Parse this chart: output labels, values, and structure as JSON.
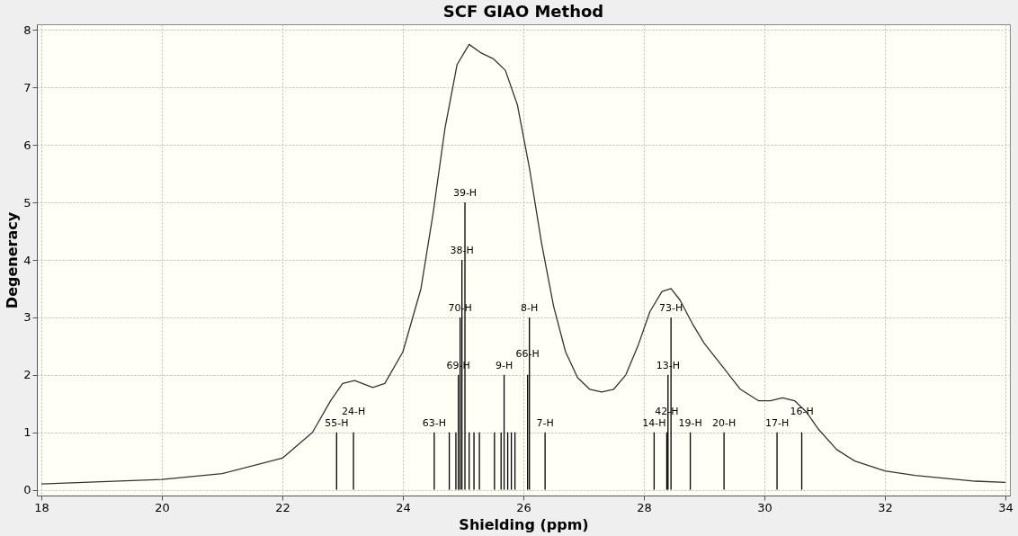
{
  "chart_data": {
    "type": "line",
    "title": "SCF GIAO Method",
    "xlabel": "Shielding (ppm)",
    "ylabel": "Degeneracy",
    "xlim": [
      18,
      34
    ],
    "xticks": [
      18,
      20,
      22,
      24,
      26,
      28,
      30,
      32,
      34
    ],
    "ylim": [
      -0.1,
      8.1
    ],
    "yticks": [
      0,
      1,
      2,
      3,
      4,
      5,
      6,
      7,
      8
    ],
    "grid": true,
    "series": [
      {
        "color": "#333333",
        "x": [
          18,
          20,
          21,
          22,
          22.5,
          22.8,
          23.0,
          23.2,
          23.5,
          23.7,
          24.0,
          24.3,
          24.5,
          24.7,
          24.9,
          25.1,
          25.3,
          25.5,
          25.7,
          25.9,
          26.1,
          26.3,
          26.5,
          26.7,
          26.9,
          27.1,
          27.3,
          27.5,
          27.7,
          27.9,
          28.1,
          28.3,
          28.45,
          28.6,
          28.8,
          29.0,
          29.3,
          29.6,
          29.9,
          30.1,
          30.3,
          30.5,
          30.7,
          30.9,
          31.2,
          31.5,
          32,
          32.5,
          33,
          33.5,
          34
        ],
        "values": [
          0.1,
          0.18,
          0.28,
          0.55,
          1.0,
          1.55,
          1.85,
          1.9,
          1.78,
          1.85,
          2.4,
          3.5,
          4.8,
          6.3,
          7.4,
          7.75,
          7.6,
          7.5,
          7.3,
          6.7,
          5.6,
          4.3,
          3.2,
          2.4,
          1.95,
          1.75,
          1.7,
          1.75,
          2.0,
          2.5,
          3.1,
          3.45,
          3.5,
          3.3,
          2.9,
          2.55,
          2.15,
          1.75,
          1.55,
          1.55,
          1.6,
          1.55,
          1.35,
          1.05,
          0.7,
          0.5,
          0.33,
          0.25,
          0.2,
          0.15,
          0.13
        ]
      },
      {
        "type": "bar",
        "color": "#000000",
        "x": [
          22.9,
          23.18,
          24.52,
          24.77,
          24.88,
          24.92,
          24.95,
          24.98,
          25.03,
          25.1,
          25.18,
          25.27,
          25.52,
          25.63,
          25.68,
          25.74,
          25.8,
          25.86,
          26.07,
          26.1,
          26.36,
          28.17,
          28.38,
          28.4,
          28.45,
          28.77,
          29.33,
          30.21,
          30.62
        ],
        "values": [
          1,
          1,
          1,
          1,
          1,
          2,
          3,
          4,
          5,
          1,
          1,
          1,
          1,
          1,
          2,
          1,
          1,
          1,
          2,
          3,
          1,
          1,
          1,
          2,
          3,
          1,
          1,
          1,
          1
        ]
      }
    ],
    "annotations": [
      {
        "text": "55-H",
        "x": 22.9,
        "y": 1
      },
      {
        "text": "24-H",
        "x": 23.18,
        "y": 1
      },
      {
        "text": "63-H",
        "x": 24.52,
        "y": 1
      },
      {
        "text": "69-H",
        "x": 24.92,
        "y": 2
      },
      {
        "text": "70-H",
        "x": 24.95,
        "y": 3
      },
      {
        "text": "38-H",
        "x": 24.98,
        "y": 4
      },
      {
        "text": "39-H",
        "x": 25.03,
        "y": 5
      },
      {
        "text": "9-H",
        "x": 25.68,
        "y": 2
      },
      {
        "text": "66-H",
        "x": 26.07,
        "y": 2
      },
      {
        "text": "8-H",
        "x": 26.1,
        "y": 3
      },
      {
        "text": "7-H",
        "x": 26.36,
        "y": 1
      },
      {
        "text": "14-H",
        "x": 28.17,
        "y": 1
      },
      {
        "text": "42-H",
        "x": 28.38,
        "y": 1
      },
      {
        "text": "13-H",
        "x": 28.4,
        "y": 2
      },
      {
        "text": "73-H",
        "x": 28.45,
        "y": 3
      },
      {
        "text": "19-H",
        "x": 28.77,
        "y": 1
      },
      {
        "text": "20-H",
        "x": 29.33,
        "y": 1
      },
      {
        "text": "17-H",
        "x": 30.21,
        "y": 1
      },
      {
        "text": "16-H",
        "x": 30.62,
        "y": 1
      }
    ]
  }
}
